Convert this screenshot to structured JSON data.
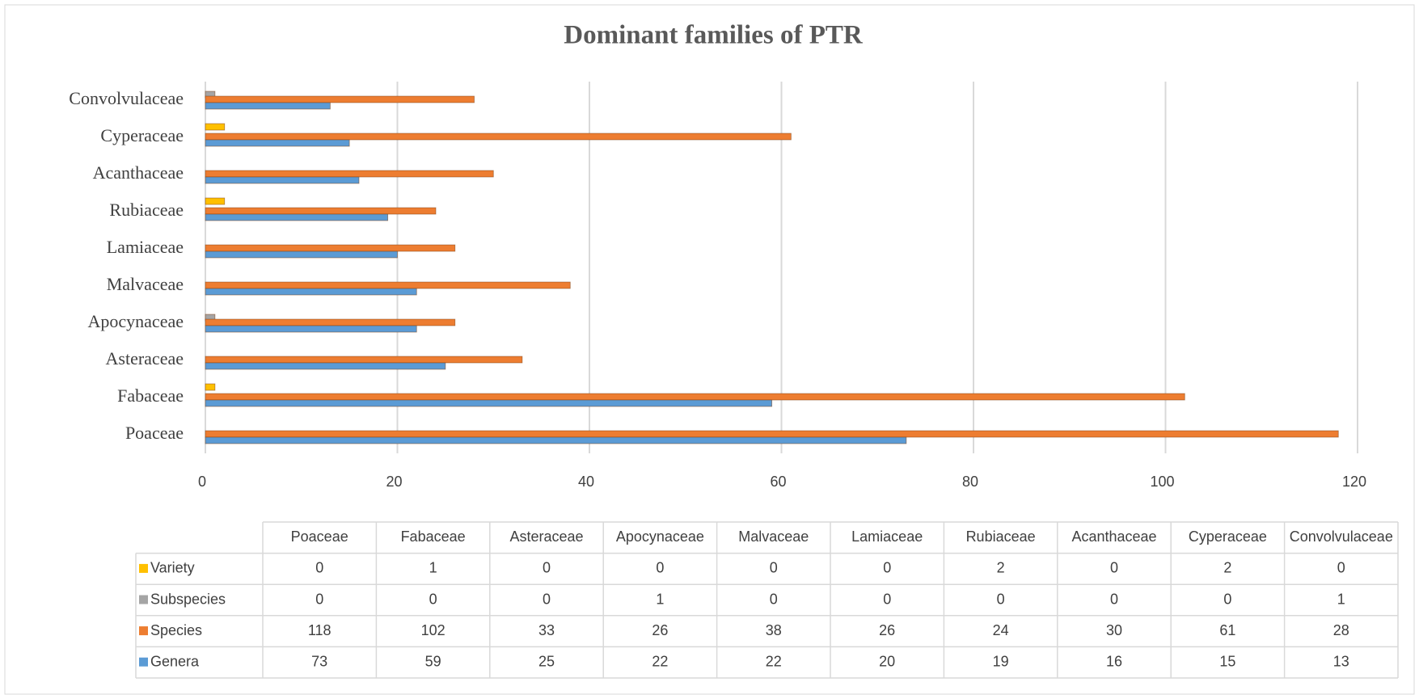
{
  "chart_data": {
    "type": "bar",
    "orientation": "horizontal",
    "title": "Dominant families of PTR",
    "categories": [
      "Poaceae",
      "Fabaceae",
      "Asteraceae",
      "Apocynaceae",
      "Malvaceae",
      "Lamiaceae",
      "Rubiaceae",
      "Acanthaceae",
      "Cyperaceae",
      "Convolvulaceae"
    ],
    "series": [
      {
        "name": "Variety",
        "color": "#ffc000",
        "values": [
          0,
          1,
          0,
          0,
          0,
          0,
          2,
          0,
          2,
          0
        ]
      },
      {
        "name": "Subspecies",
        "color": "#a5a5a5",
        "values": [
          0,
          0,
          0,
          1,
          0,
          0,
          0,
          0,
          0,
          1
        ]
      },
      {
        "name": "Species",
        "color": "#ed7d31",
        "values": [
          118,
          102,
          33,
          26,
          38,
          26,
          24,
          30,
          61,
          28
        ]
      },
      {
        "name": "Genera",
        "color": "#5b9bd5",
        "values": [
          73,
          59,
          25,
          22,
          22,
          20,
          19,
          16,
          15,
          13
        ]
      }
    ],
    "xlim": [
      0,
      120
    ],
    "xticks": [
      0,
      20,
      40,
      60,
      80,
      100,
      120
    ],
    "grid": true
  }
}
